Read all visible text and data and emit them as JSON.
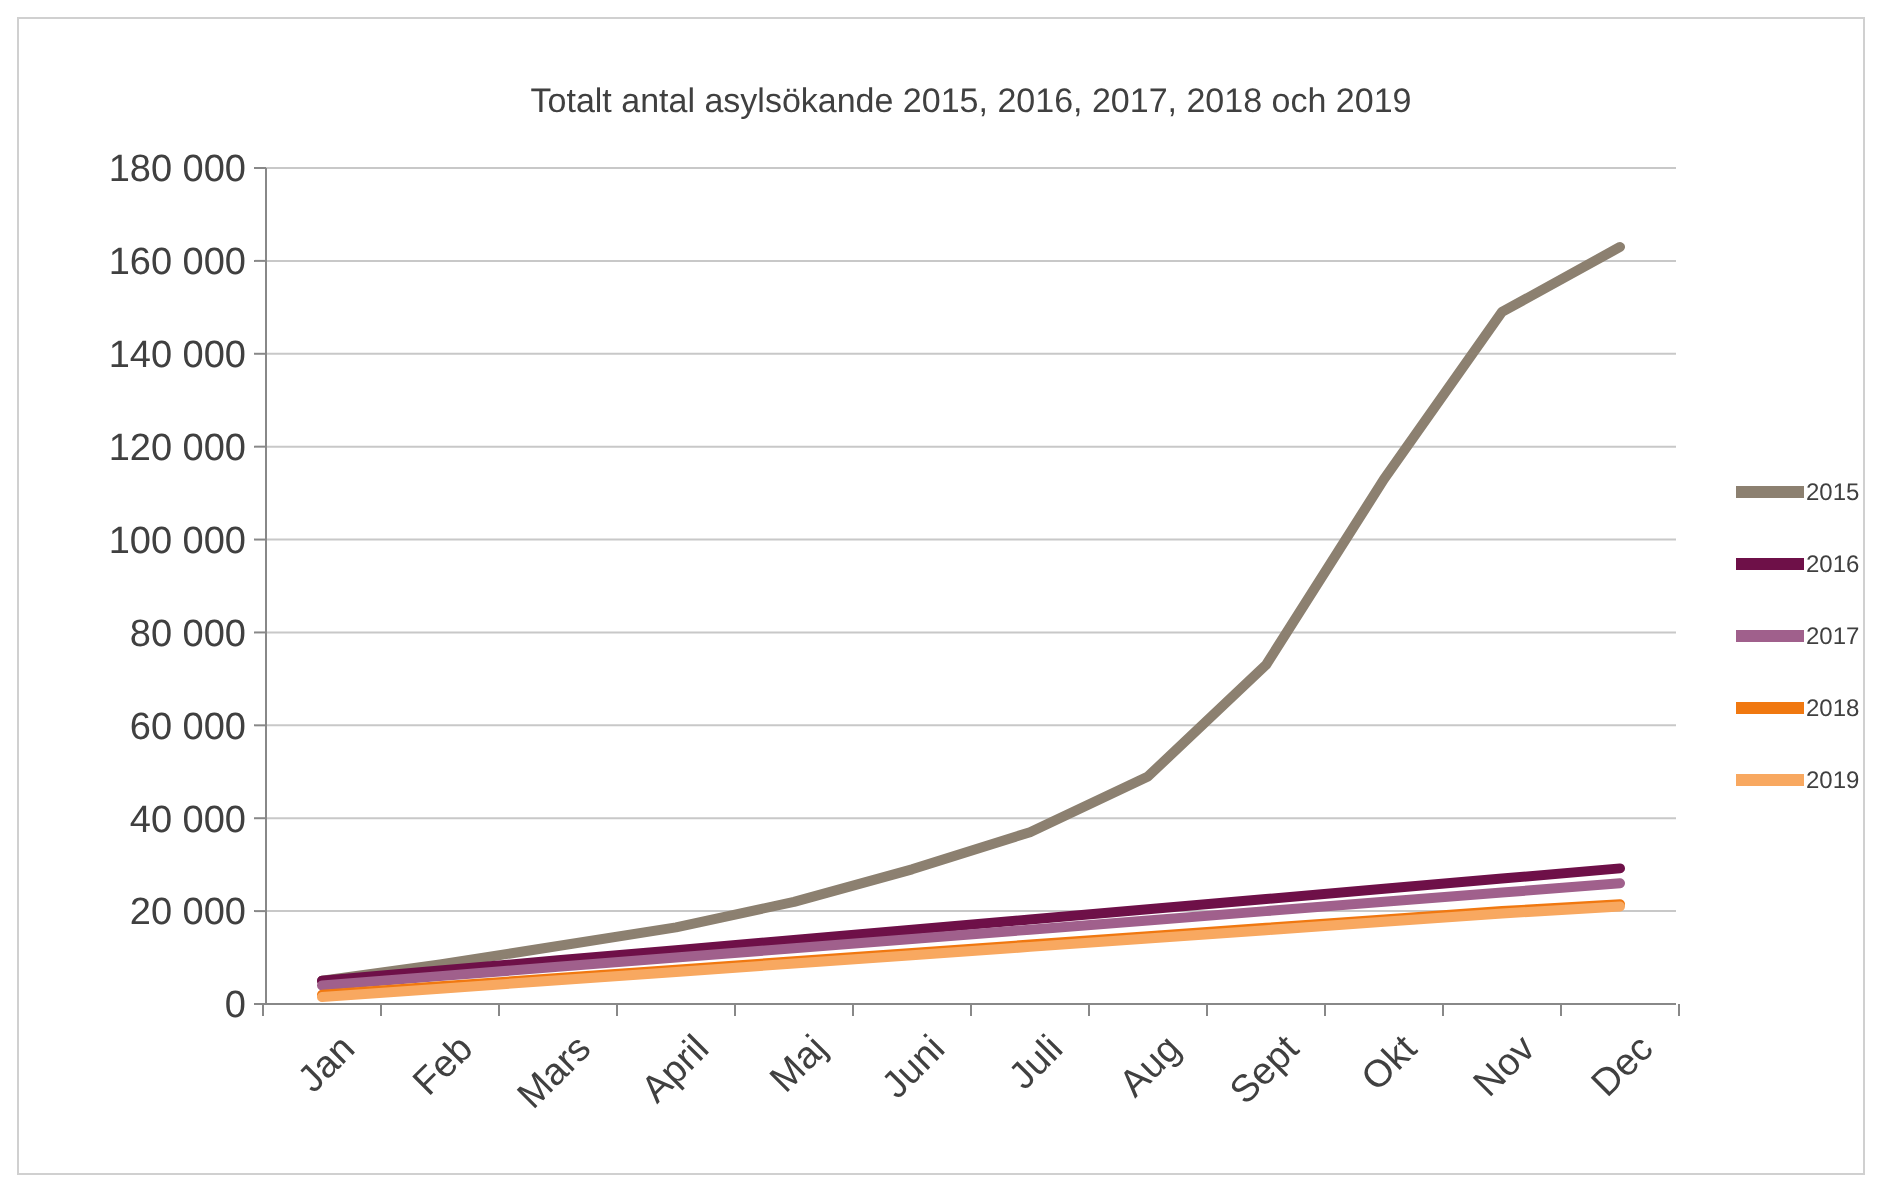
{
  "chart_data": {
    "type": "line",
    "title": "Totalt antal asylsökande 2015, 2016, 2017, 2018 och 2019",
    "categories": [
      "Jan",
      "Feb",
      "Mars",
      "April",
      "Maj",
      "Juni",
      "Juli",
      "Aug",
      "Sept",
      "Okt",
      "Nov",
      "Dec"
    ],
    "series": [
      {
        "name": "2015",
        "color": "#8c8070",
        "values": [
          5000,
          8500,
          12500,
          16500,
          22000,
          29000,
          37000,
          49000,
          73000,
          113000,
          149000,
          163000
        ]
      },
      {
        "name": "2016",
        "color": "#6e1048",
        "values": [
          5000,
          7200,
          9400,
          11600,
          13800,
          16000,
          18200,
          20400,
          22600,
          24800,
          27000,
          29200
        ]
      },
      {
        "name": "2017",
        "color": "#a0608c",
        "values": [
          4000,
          6000,
          8000,
          10000,
          12000,
          14000,
          16000,
          18000,
          20000,
          22000,
          24000,
          26000
        ]
      },
      {
        "name": "2018",
        "color": "#f07810",
        "values": [
          2000,
          3800,
          5600,
          7400,
          9200,
          11000,
          12800,
          14600,
          16400,
          18200,
          20000,
          21500
        ]
      },
      {
        "name": "2019",
        "color": "#f8a860",
        "values": [
          1500,
          3300,
          5100,
          6900,
          8700,
          10500,
          12300,
          14100,
          15900,
          17700,
          19500,
          21000
        ]
      }
    ],
    "ylim": [
      0,
      180000
    ],
    "yticks": [
      {
        "value": 0,
        "label": "0"
      },
      {
        "value": 20000,
        "label": "20 000"
      },
      {
        "value": 40000,
        "label": "40 000"
      },
      {
        "value": 60000,
        "label": "60 000"
      },
      {
        "value": 80000,
        "label": "80 000"
      },
      {
        "value": 100000,
        "label": "100 000"
      },
      {
        "value": 120000,
        "label": "120 000"
      },
      {
        "value": 140000,
        "label": "140 000"
      },
      {
        "value": 160000,
        "label": "160 000"
      },
      {
        "value": 180000,
        "label": "180 000"
      }
    ],
    "grid": "y",
    "legend": "right",
    "marker": "none",
    "line_style": "solid"
  }
}
